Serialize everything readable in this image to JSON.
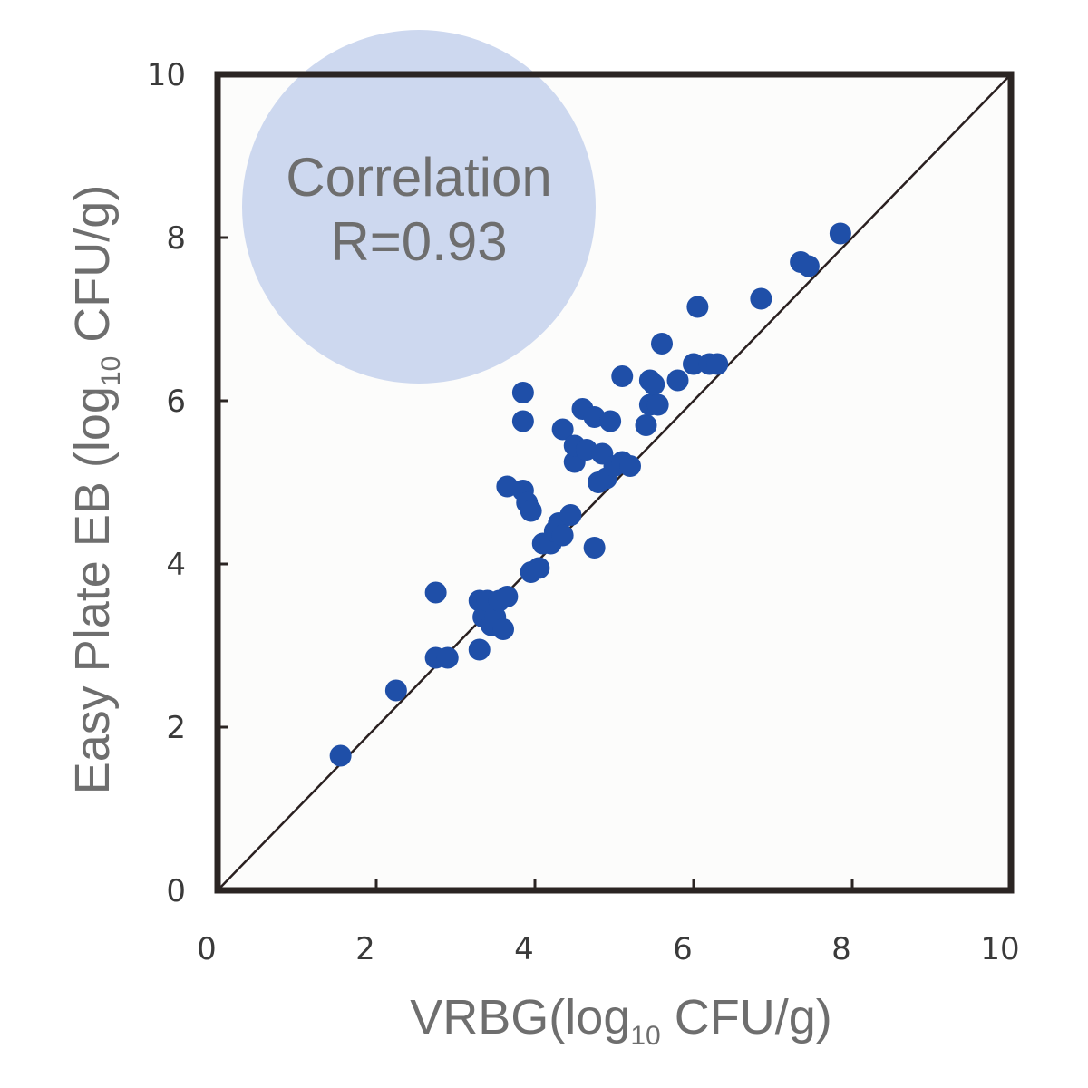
{
  "chart_data": {
    "type": "scatter",
    "title": "",
    "xlabel": {
      "prefix": "VRBG(log",
      "subscript": "10",
      "suffix": " CFU/g)"
    },
    "ylabel": {
      "prefix": "Easy Plate EB (log",
      "subscript": "10",
      "suffix": " CFU/g)"
    },
    "xlim": [
      0,
      10
    ],
    "ylim": [
      0,
      10
    ],
    "xticks": [
      "0",
      "2",
      "4",
      "6",
      "8",
      "10"
    ],
    "yticks": [
      "0",
      "2",
      "4",
      "6",
      "8",
      "10"
    ],
    "grid": false,
    "reference_line": {
      "from": [
        0,
        0
      ],
      "to": [
        10,
        10
      ],
      "color": "#2a2020"
    },
    "annotation": {
      "line1": "Correlation",
      "line2": "R=0.93",
      "fill_color": "#cdd8ef",
      "position": "top-left"
    },
    "marker_color": "#1f4fa8",
    "frame_color": "#2b2523",
    "series": [
      {
        "points": [
          [
            1.55,
            1.65
          ],
          [
            2.25,
            2.45
          ],
          [
            2.75,
            2.85
          ],
          [
            2.9,
            2.85
          ],
          [
            2.75,
            3.65
          ],
          [
            3.3,
            2.95
          ],
          [
            3.3,
            3.55
          ],
          [
            3.35,
            3.35
          ],
          [
            3.4,
            3.55
          ],
          [
            3.45,
            3.25
          ],
          [
            3.5,
            3.35
          ],
          [
            3.55,
            3.55
          ],
          [
            3.6,
            3.2
          ],
          [
            3.65,
            3.6
          ],
          [
            3.65,
            4.95
          ],
          [
            3.85,
            4.9
          ],
          [
            3.85,
            6.1
          ],
          [
            3.85,
            5.75
          ],
          [
            3.9,
            4.75
          ],
          [
            3.95,
            4.65
          ],
          [
            3.95,
            3.9
          ],
          [
            4.05,
            3.95
          ],
          [
            4.1,
            4.25
          ],
          [
            4.2,
            4.25
          ],
          [
            4.25,
            4.4
          ],
          [
            4.3,
            4.5
          ],
          [
            4.35,
            4.35
          ],
          [
            4.35,
            5.65
          ],
          [
            4.45,
            4.6
          ],
          [
            4.5,
            5.25
          ],
          [
            4.5,
            5.45
          ],
          [
            4.6,
            5.9
          ],
          [
            4.65,
            5.4
          ],
          [
            4.75,
            4.2
          ],
          [
            4.75,
            5.8
          ],
          [
            4.8,
            5.0
          ],
          [
            4.85,
            5.35
          ],
          [
            4.9,
            5.05
          ],
          [
            4.95,
            5.75
          ],
          [
            5.0,
            5.2
          ],
          [
            5.1,
            5.25
          ],
          [
            5.1,
            6.3
          ],
          [
            5.2,
            5.2
          ],
          [
            5.4,
            5.7
          ],
          [
            5.45,
            5.95
          ],
          [
            5.45,
            6.25
          ],
          [
            5.5,
            6.2
          ],
          [
            5.55,
            5.95
          ],
          [
            5.6,
            6.7
          ],
          [
            5.8,
            6.25
          ],
          [
            6.0,
            6.45
          ],
          [
            6.05,
            7.15
          ],
          [
            6.2,
            6.45
          ],
          [
            6.3,
            6.45
          ],
          [
            6.85,
            7.25
          ],
          [
            7.35,
            7.7
          ],
          [
            7.45,
            7.65
          ],
          [
            7.85,
            8.05
          ]
        ]
      }
    ]
  }
}
